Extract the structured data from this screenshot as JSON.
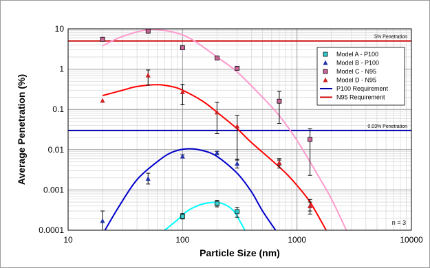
{
  "chart_data": {
    "type": "scatter",
    "xlabel": "Particle Size (nm)",
    "ylabel": "Average Penetration (%)",
    "xscale": "log",
    "yscale": "log",
    "xlim": [
      10,
      10000
    ],
    "ylim": [
      0.0001,
      10
    ],
    "x_tick_labels": [
      "10",
      "100",
      "1000",
      "10000"
    ],
    "y_tick_labels": [
      "0.0001",
      "0.001",
      "0.01",
      "0.1",
      "1",
      "10"
    ],
    "grid": "on",
    "legend_position": "right",
    "note": "n = 3",
    "series": [
      {
        "name": "Model A - P100",
        "marker": "square",
        "color": "#33cccc",
        "points": [
          {
            "x": 100,
            "y": 0.00022,
            "lo": 0.00019,
            "hi": 0.00026
          },
          {
            "x": 200,
            "y": 0.00046,
            "lo": 0.00038,
            "hi": 0.00055
          },
          {
            "x": 300,
            "y": 0.00029,
            "lo": 0.00021,
            "hi": 0.00037
          }
        ],
        "fit": {
          "color": "#00ffff",
          "x": [
            70,
            90,
            110,
            140,
            170,
            200,
            240,
            280,
            320,
            350
          ],
          "y": [
            0.0001,
            0.00018,
            0.0003,
            0.00042,
            0.00048,
            0.00049,
            0.00042,
            0.0003,
            0.00016,
            0.0001
          ]
        }
      },
      {
        "name": "Model B - P100",
        "marker": "triangle",
        "color": "#2233aa",
        "points": [
          {
            "x": 20,
            "y": 0.00017,
            "lo": 0.0001,
            "hi": 0.0003
          },
          {
            "x": 50,
            "y": 0.0019,
            "lo": 0.0014,
            "hi": 0.0026
          },
          {
            "x": 100,
            "y": 0.0068,
            "lo": 0.0062,
            "hi": 0.0075
          },
          {
            "x": 200,
            "y": 0.0083,
            "lo": 0.0075,
            "hi": 0.0091
          },
          {
            "x": 300,
            "y": 0.0045,
            "lo": 0.0035,
            "hi": 0.0058
          },
          {
            "x": 700,
            "y": 0.0047,
            "lo": 0.004,
            "hi": 0.0055
          },
          {
            "x": 1300,
            "y": 0.0004,
            "lo": 0.0003,
            "hi": 0.0005
          }
        ],
        "fit": {
          "color": "#0000cc",
          "x": [
            21,
            28,
            40,
            60,
            80,
            110,
            150,
            200,
            300,
            400,
            500,
            650
          ],
          "y": [
            0.0001,
            0.0004,
            0.0018,
            0.005,
            0.0085,
            0.0105,
            0.0095,
            0.0068,
            0.0026,
            0.0009,
            0.0003,
            0.0001
          ]
        }
      },
      {
        "name": "Model C - N95",
        "marker": "square",
        "color": "#cc6699",
        "points": [
          {
            "x": 20,
            "y": 5.5
          },
          {
            "x": 50,
            "y": 8.8
          },
          {
            "x": 100,
            "y": 3.4
          },
          {
            "x": 200,
            "y": 1.9
          },
          {
            "x": 300,
            "y": 1.05
          },
          {
            "x": 700,
            "y": 0.16,
            "lo": 0.045,
            "hi": 0.28
          },
          {
            "x": 1300,
            "y": 0.018,
            "lo": 0.0023,
            "hi": 0.033
          }
        ],
        "fit": {
          "color": "#ff99cc",
          "x": [
            20,
            30,
            50,
            80,
            120,
            200,
            300,
            500,
            700,
            1000,
            1500,
            2000,
            2700
          ],
          "y": [
            3.8,
            6.5,
            9.5,
            8.5,
            5.5,
            2.0,
            0.85,
            0.2,
            0.07,
            0.017,
            0.0025,
            0.0006,
            0.0001
          ]
        }
      },
      {
        "name": "Model D - N95",
        "marker": "triangle",
        "color": "#cc2222",
        "points": [
          {
            "x": 20,
            "y": 0.165
          },
          {
            "x": 50,
            "y": 0.7,
            "lo": 0.4,
            "hi": 0.95
          },
          {
            "x": 100,
            "y": 0.27,
            "lo": 0.13,
            "hi": 0.42
          },
          {
            "x": 200,
            "y": 0.085,
            "lo": 0.025,
            "hi": 0.15
          },
          {
            "x": 300,
            "y": 0.038,
            "lo": 0.0055,
            "hi": 0.07
          },
          {
            "x": 700,
            "y": 0.0047,
            "lo": 0.0035,
            "hi": 0.006
          },
          {
            "x": 1300,
            "y": 0.0004,
            "lo": 0.00025,
            "hi": 0.00058
          }
        ],
        "fit": {
          "color": "#ff0000",
          "x": [
            20,
            30,
            40,
            60,
            80,
            100,
            150,
            200,
            300,
            400,
            600,
            800,
            1000,
            1300,
            1800
          ],
          "y": [
            0.22,
            0.3,
            0.37,
            0.41,
            0.37,
            0.3,
            0.16,
            0.085,
            0.033,
            0.015,
            0.0055,
            0.0026,
            0.0013,
            0.0005,
            0.0001
          ]
        }
      }
    ],
    "reference_lines": [
      {
        "name": "P100 Requirement",
        "y": 0.03,
        "color": "#0000aa",
        "label": "0.03% Penetration"
      },
      {
        "name": "N95 Requirement",
        "y": 5,
        "color": "#cc0000",
        "label": "5% Penetration"
      }
    ]
  }
}
